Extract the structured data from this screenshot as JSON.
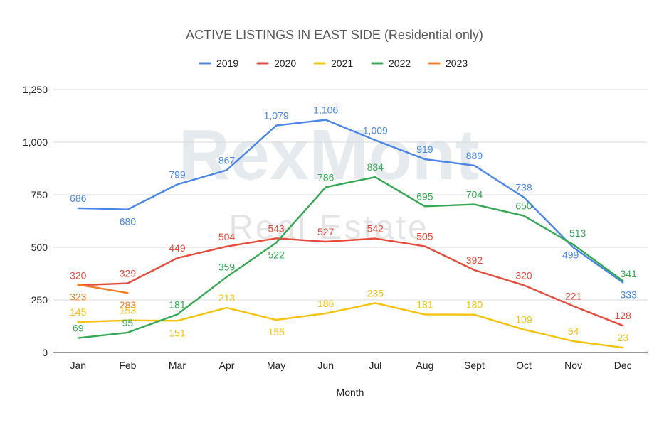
{
  "chart_data": {
    "type": "line",
    "title": "ACTIVE LISTINGS IN EAST SIDE (Residential only)",
    "xlabel": "Month",
    "ylabel": "",
    "categories": [
      "Jan",
      "Feb",
      "Mar",
      "Apr",
      "May",
      "Jun",
      "Jul",
      "Aug",
      "Sept",
      "Oct",
      "Nov",
      "Dec"
    ],
    "ylim": [
      0,
      1250
    ],
    "yticks": [
      0,
      250,
      500,
      750,
      1000,
      1250
    ],
    "ytick_labels": [
      "0",
      "250",
      "500",
      "750",
      "1,000",
      "1,250"
    ],
    "grid": true,
    "legend_position": "top",
    "series": [
      {
        "name": "2019",
        "color": "#4a86e8",
        "values": [
          686,
          680,
          799,
          867,
          1079,
          1106,
          1009,
          919,
          889,
          738,
          499,
          333
        ]
      },
      {
        "name": "2020",
        "color": "#e64a3b",
        "values": [
          320,
          329,
          449,
          504,
          543,
          527,
          542,
          505,
          392,
          320,
          221,
          128
        ]
      },
      {
        "name": "2021",
        "color": "#f4c20d",
        "values": [
          145,
          153,
          151,
          213,
          155,
          186,
          235,
          181,
          180,
          109,
          54,
          23
        ]
      },
      {
        "name": "2022",
        "color": "#34a853",
        "values": [
          69,
          95,
          181,
          359,
          522,
          786,
          834,
          695,
          704,
          650,
          513,
          341
        ]
      },
      {
        "name": "2023",
        "color": "#f47c20",
        "values": [
          323,
          283,
          null,
          null,
          null,
          null,
          null,
          null,
          null,
          null,
          null,
          null
        ]
      }
    ]
  },
  "watermark": {
    "brand": "RexMont",
    "subtitle": "Real Estate"
  }
}
